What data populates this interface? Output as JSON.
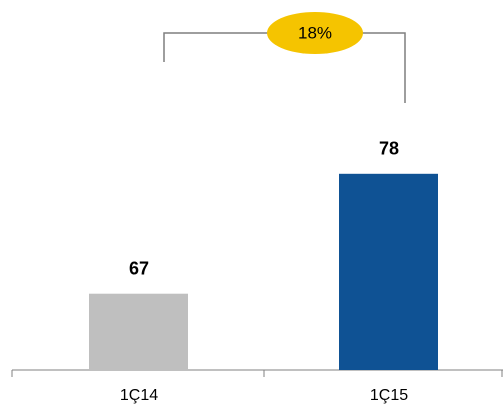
{
  "chart_data": {
    "type": "bar",
    "categories": [
      "1Ç14",
      "1Ç15"
    ],
    "values": [
      67,
      78
    ],
    "colors": [
      "#bfbfbf",
      "#0f5294"
    ],
    "ylim": [
      60,
      80
    ],
    "annotation": "18%",
    "annotation_color": "#f5c400"
  }
}
